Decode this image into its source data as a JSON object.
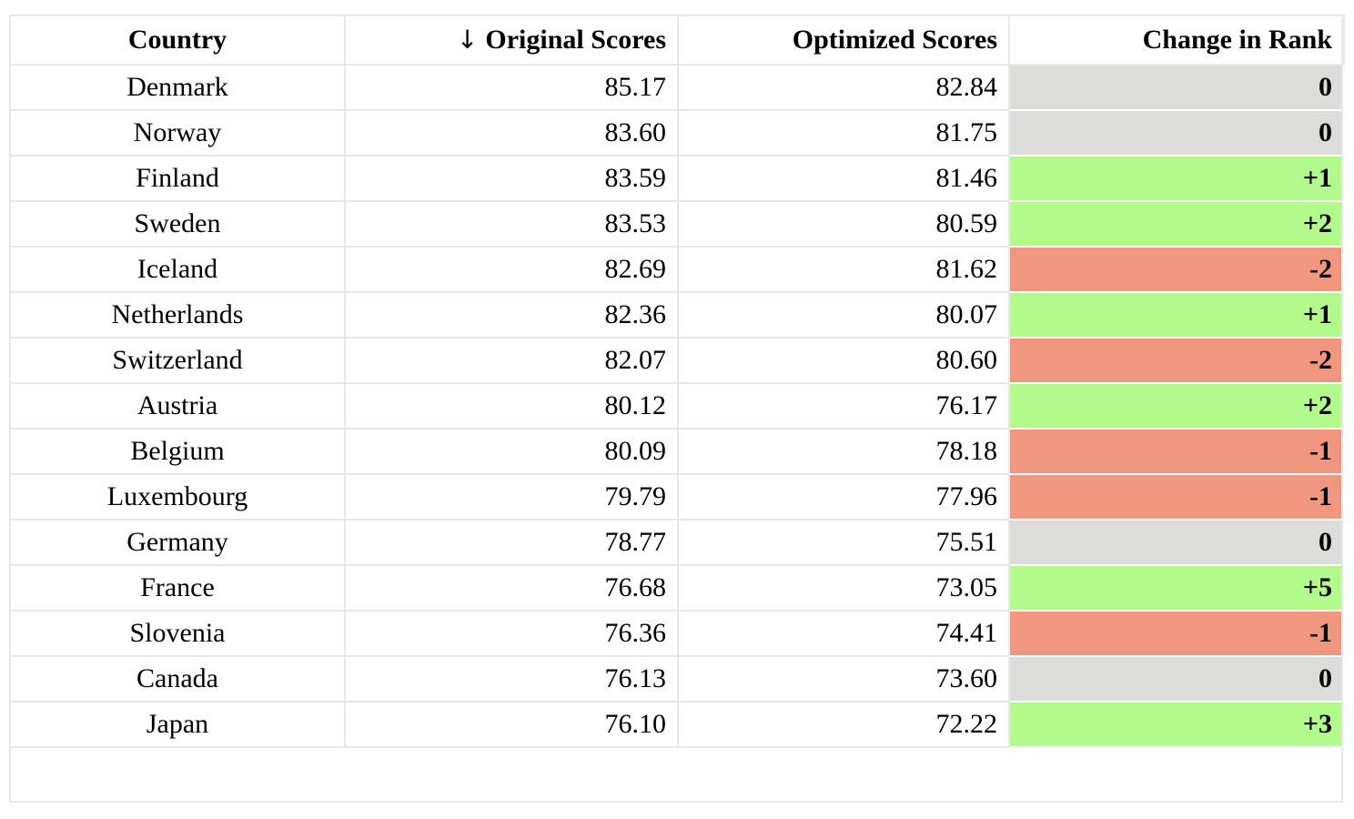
{
  "table": {
    "headers": {
      "country": "Country",
      "sort_arrow": "↓",
      "original": "Original Scores",
      "optimized": "Optimized Scores",
      "change": "Change in Rank"
    },
    "rows": [
      {
        "country": "Denmark",
        "original": "85.17",
        "optimized": "82.84",
        "change": "0",
        "status": "neutral"
      },
      {
        "country": "Norway",
        "original": "83.60",
        "optimized": "81.75",
        "change": "0",
        "status": "neutral"
      },
      {
        "country": "Finland",
        "original": "83.59",
        "optimized": "81.46",
        "change": "+1",
        "status": "up"
      },
      {
        "country": "Sweden",
        "original": "83.53",
        "optimized": "80.59",
        "change": "+2",
        "status": "up"
      },
      {
        "country": "Iceland",
        "original": "82.69",
        "optimized": "81.62",
        "change": "-2",
        "status": "down"
      },
      {
        "country": "Netherlands",
        "original": "82.36",
        "optimized": "80.07",
        "change": "+1",
        "status": "up"
      },
      {
        "country": "Switzerland",
        "original": "82.07",
        "optimized": "80.60",
        "change": "-2",
        "status": "down"
      },
      {
        "country": "Austria",
        "original": "80.12",
        "optimized": "76.17",
        "change": "+2",
        "status": "up"
      },
      {
        "country": "Belgium",
        "original": "80.09",
        "optimized": "78.18",
        "change": "-1",
        "status": "down"
      },
      {
        "country": "Luxembourg",
        "original": "79.79",
        "optimized": "77.96",
        "change": "-1",
        "status": "down"
      },
      {
        "country": "Germany",
        "original": "78.77",
        "optimized": "75.51",
        "change": "0",
        "status": "neutral"
      },
      {
        "country": "France",
        "original": "76.68",
        "optimized": "73.05",
        "change": "+5",
        "status": "up"
      },
      {
        "country": "Slovenia",
        "original": "76.36",
        "optimized": "74.41",
        "change": "-1",
        "status": "down"
      },
      {
        "country": "Canada",
        "original": "76.13",
        "optimized": "73.60",
        "change": "0",
        "status": "neutral"
      },
      {
        "country": "Japan",
        "original": "76.10",
        "optimized": "72.22",
        "change": "+3",
        "status": "up"
      }
    ]
  },
  "colors": {
    "up": "#b3fa8c",
    "down": "#f2977f",
    "neutral": "#dcdddb",
    "grid": "#e8e8e8"
  }
}
